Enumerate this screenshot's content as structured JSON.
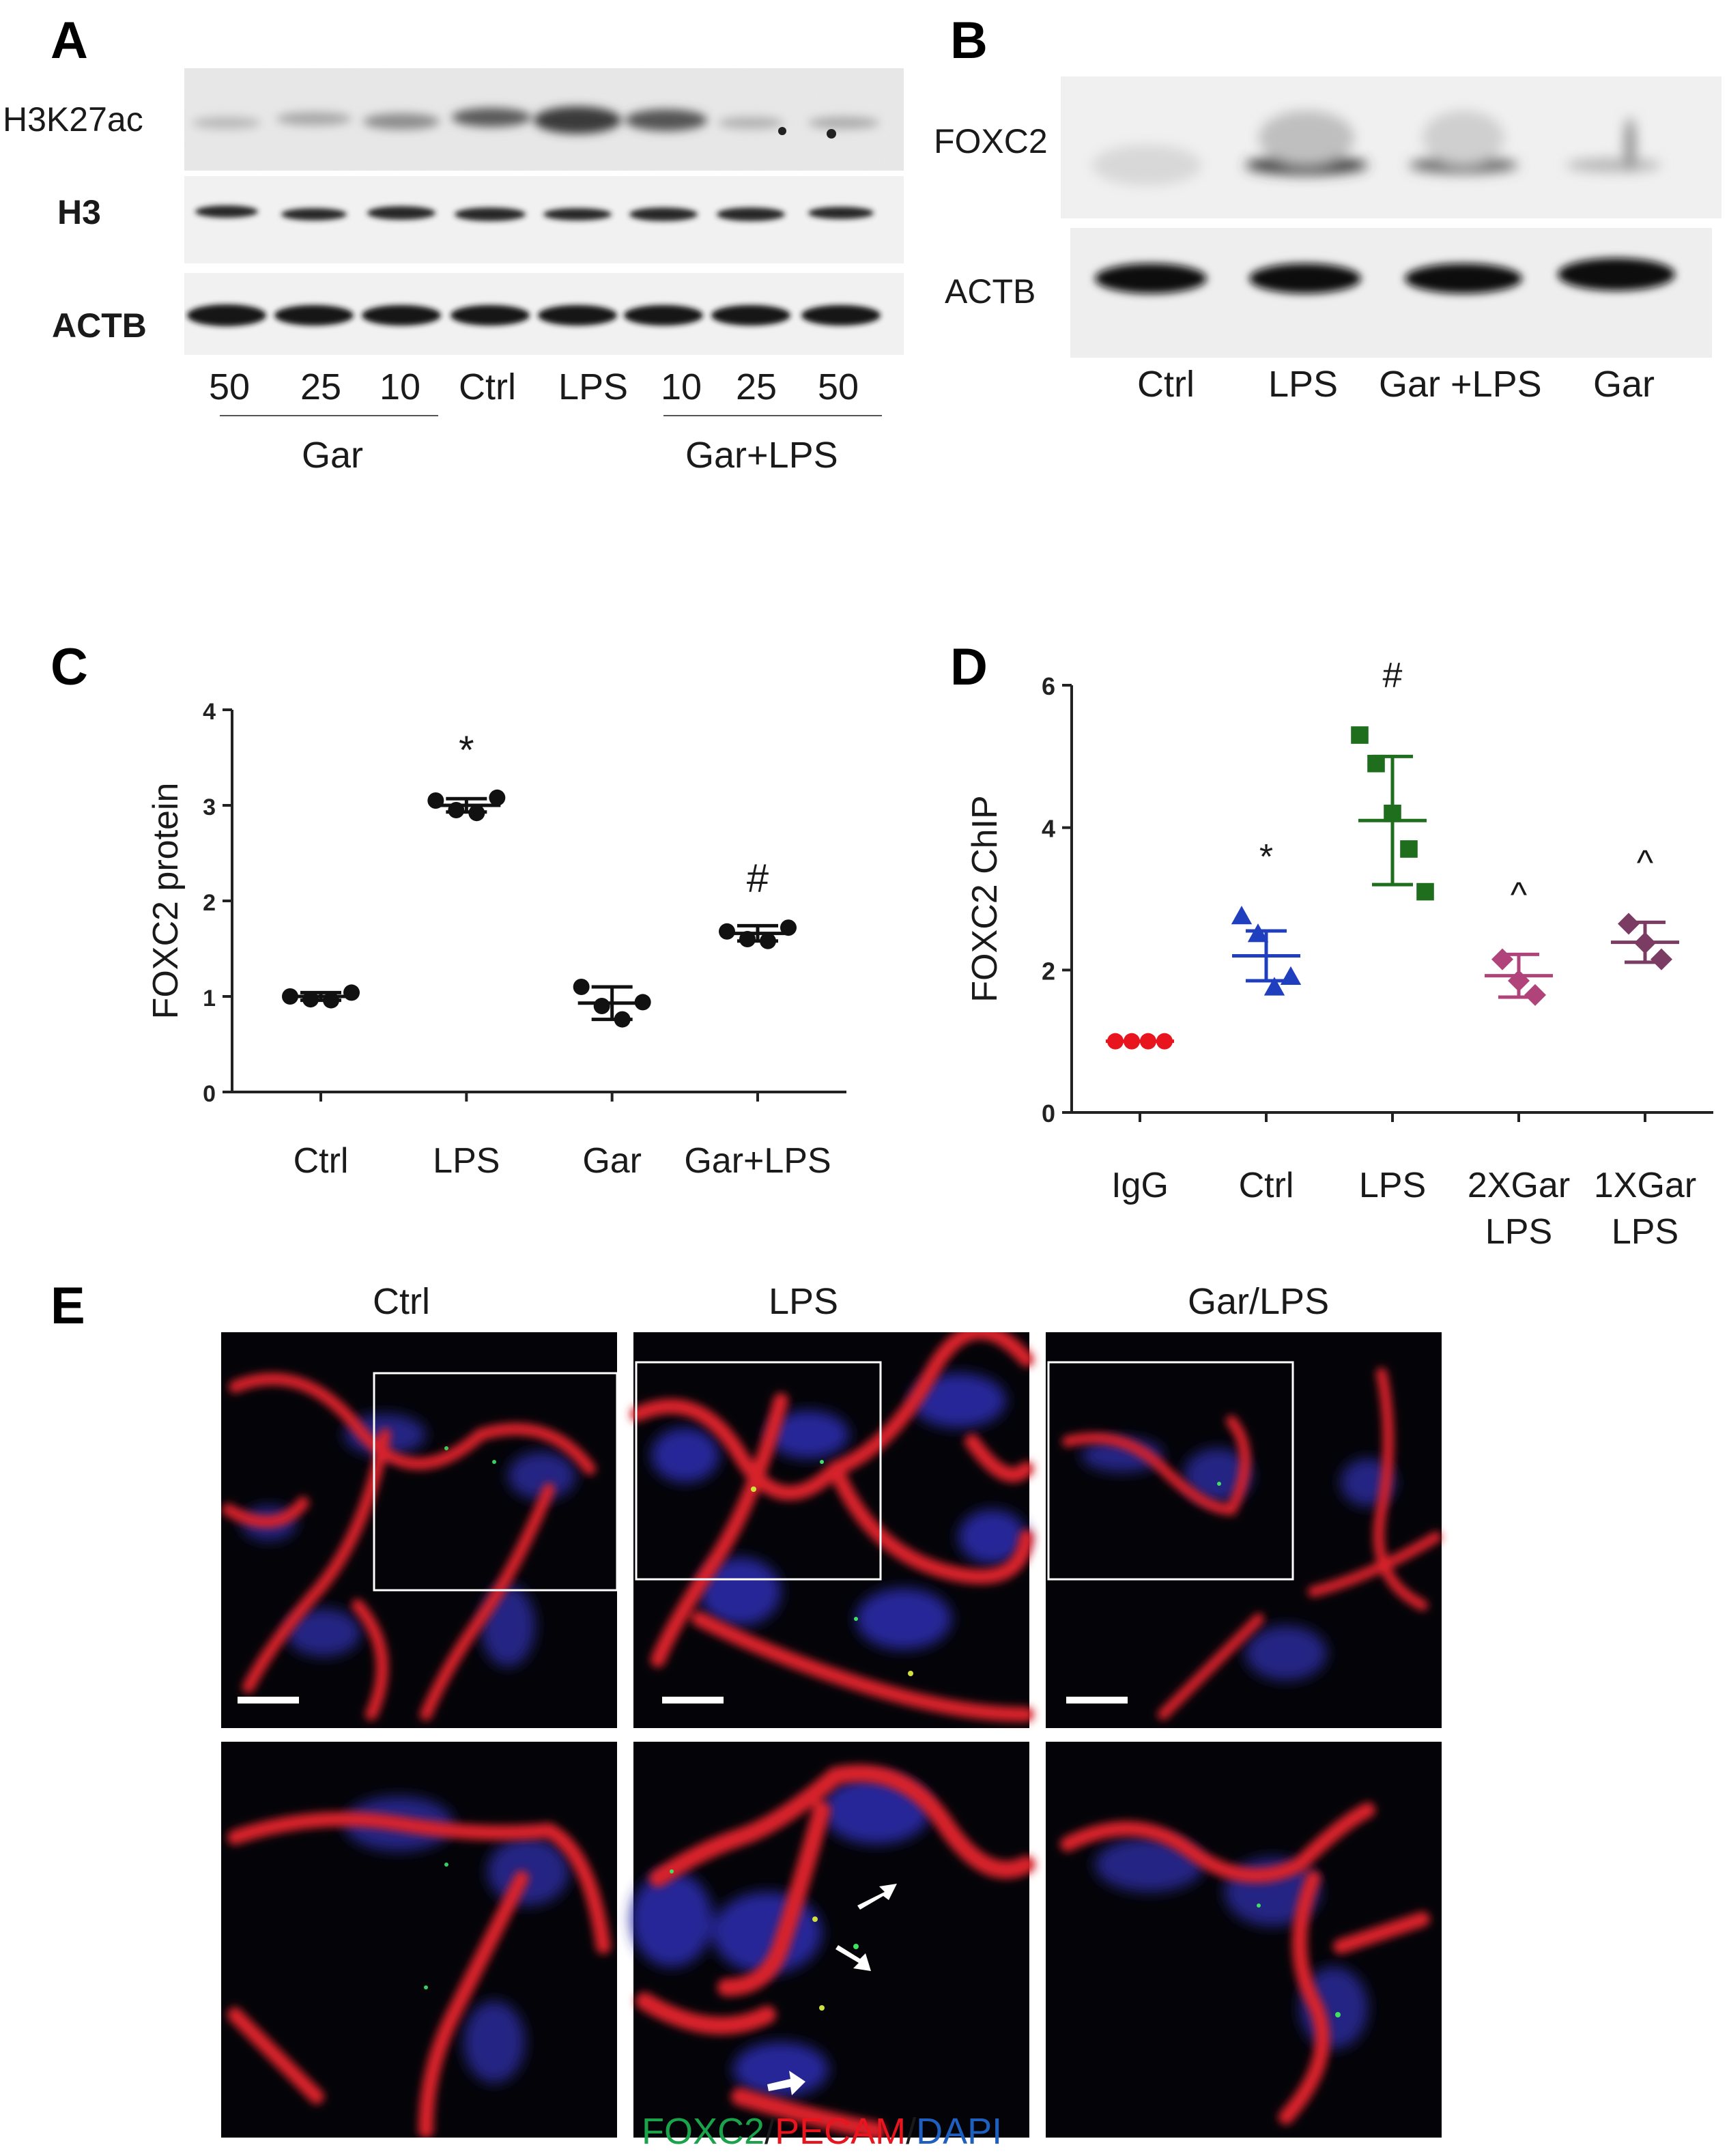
{
  "panels": {
    "a": {
      "letter": "A",
      "rows": [
        "H3K27ac",
        "H3",
        "ACTB"
      ],
      "lanes": [
        "50",
        "25",
        "10",
        "Ctrl",
        "LPS",
        "10",
        "25",
        "50"
      ],
      "groups": [
        "Gar",
        "Gar+LPS"
      ]
    },
    "b": {
      "letter": "B",
      "rows": [
        "FOXC2",
        "ACTB"
      ],
      "lanes": [
        "Ctrl",
        "LPS",
        "Gar +LPS",
        "Gar"
      ]
    },
    "c": {
      "letter": "C"
    },
    "d": {
      "letter": "D"
    },
    "e": {
      "letter": "E",
      "columns": [
        "Ctrl",
        "LPS",
        "Gar/LPS"
      ],
      "legend": {
        "foxc2": "FOXC2",
        "pecam": "PECAM",
        "dapi": "DAPI",
        "sep": "/"
      },
      "legend_colors": {
        "foxc2": "#1aa34a",
        "pecam": "#e8141e",
        "dapi": "#1f5fbf"
      }
    }
  },
  "chart_data": [
    {
      "type": "scatter",
      "title": "",
      "ylabel": "FOXC2 protein",
      "xlabel": "",
      "categories": [
        "Ctrl",
        "LPS",
        "Gar",
        "Gar+LPS"
      ],
      "ylim": [
        0,
        4
      ],
      "yticks": [
        "0",
        "1",
        "2",
        "3",
        "4"
      ],
      "series": [
        {
          "points": [
            {
              "cat": 0,
              "values": [
                1.0,
                0.97,
                0.96,
                1.04
              ],
              "mean": 1.0,
              "sd": 0.04
            },
            {
              "cat": 1,
              "values": [
                3.05,
                2.95,
                2.92,
                3.08
              ],
              "mean": 3.0,
              "sd": 0.07
            },
            {
              "cat": 2,
              "values": [
                1.1,
                0.9,
                0.76,
                0.94
              ],
              "mean": 0.93,
              "sd": 0.17
            },
            {
              "cat": 3,
              "values": [
                1.68,
                1.6,
                1.58,
                1.72
              ],
              "mean": 1.66,
              "sd": 0.08
            }
          ]
        }
      ],
      "annotations": [
        {
          "cat": 1,
          "text": "*"
        },
        {
          "cat": 3,
          "text": "#"
        }
      ],
      "marker_color": "#111111"
    },
    {
      "type": "scatter",
      "title": "",
      "ylabel": "FOXC2 ChIP",
      "xlabel": "",
      "categories": [
        "IgG",
        "Ctrl",
        "LPS",
        "2XGar LPS",
        "1XGar LPS"
      ],
      "ylim": [
        0,
        6
      ],
      "yticks": [
        "0",
        "2",
        "4",
        "6"
      ],
      "series": [
        {
          "points": [
            {
              "cat": 0,
              "values": [
                1.0,
                1.0,
                1.0,
                1.0
              ],
              "mean": 1.0,
              "sd": 0.0,
              "marker": "circle",
              "color": "#e8141e"
            },
            {
              "cat": 1,
              "values": [
                2.75,
                2.5,
                1.75,
                1.9
              ],
              "mean": 2.2,
              "sd": 0.35,
              "marker": "triangle",
              "color": "#1f3fbf"
            },
            {
              "cat": 2,
              "values": [
                5.3,
                4.9,
                4.2,
                3.7,
                3.1
              ],
              "mean": 4.1,
              "sd": 0.9,
              "marker": "square",
              "color": "#1e6e1e"
            },
            {
              "cat": 3,
              "values": [
                2.15,
                1.85,
                1.65
              ],
              "mean": 1.92,
              "sd": 0.3,
              "marker": "diamond",
              "color": "#b0447a"
            },
            {
              "cat": 4,
              "values": [
                2.65,
                2.38,
                2.15
              ],
              "mean": 2.39,
              "sd": 0.28,
              "marker": "diamond",
              "color": "#7a3c63"
            }
          ]
        }
      ],
      "annotations": [
        {
          "cat": 1,
          "text": "*"
        },
        {
          "cat": 2,
          "text": "#"
        },
        {
          "cat": 3,
          "text": "^"
        },
        {
          "cat": 4,
          "text": "^"
        }
      ]
    }
  ]
}
